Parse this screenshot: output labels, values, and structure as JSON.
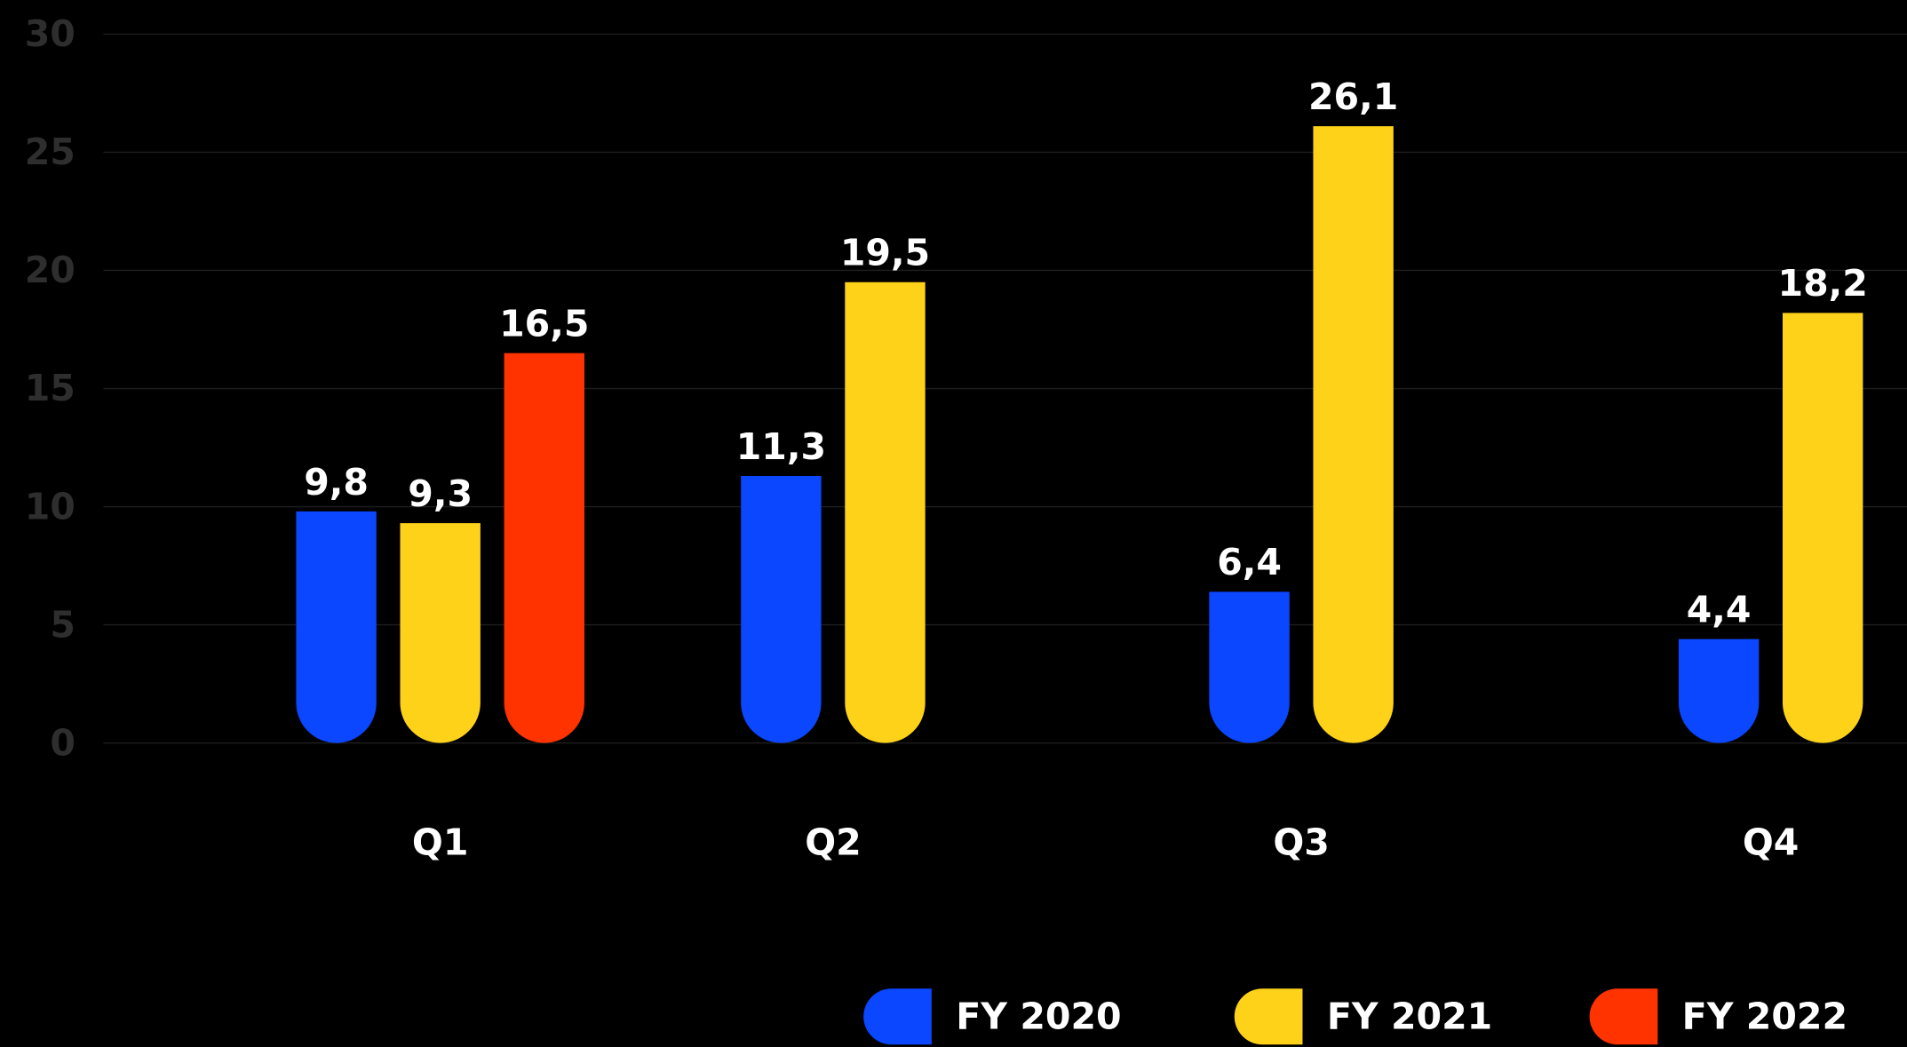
{
  "chart_data": {
    "type": "bar",
    "categories": [
      "Q1",
      "Q2",
      "Q3",
      "Q4"
    ],
    "series": [
      {
        "name": "FY 2020",
        "color": "#0a47ff",
        "values": [
          9.8,
          11.3,
          6.4,
          4.4
        ],
        "value_labels": [
          "9,8",
          "11,3",
          "6,4",
          "4,4"
        ]
      },
      {
        "name": "FY 2021",
        "color": "#ffd21a",
        "values": [
          9.3,
          19.5,
          26.1,
          18.2
        ],
        "value_labels": [
          "9,3",
          "19,5",
          "26,1",
          "18,2"
        ]
      },
      {
        "name": "FY 2022",
        "color": "#ff3300",
        "values": [
          16.5,
          null,
          null,
          null
        ],
        "value_labels": [
          "16,5",
          null,
          null,
          null
        ]
      }
    ],
    "ylim": [
      0,
      30
    ],
    "yticks": [
      0,
      5,
      10,
      15,
      20,
      25,
      30
    ],
    "grid": true,
    "legend": "bottom"
  }
}
